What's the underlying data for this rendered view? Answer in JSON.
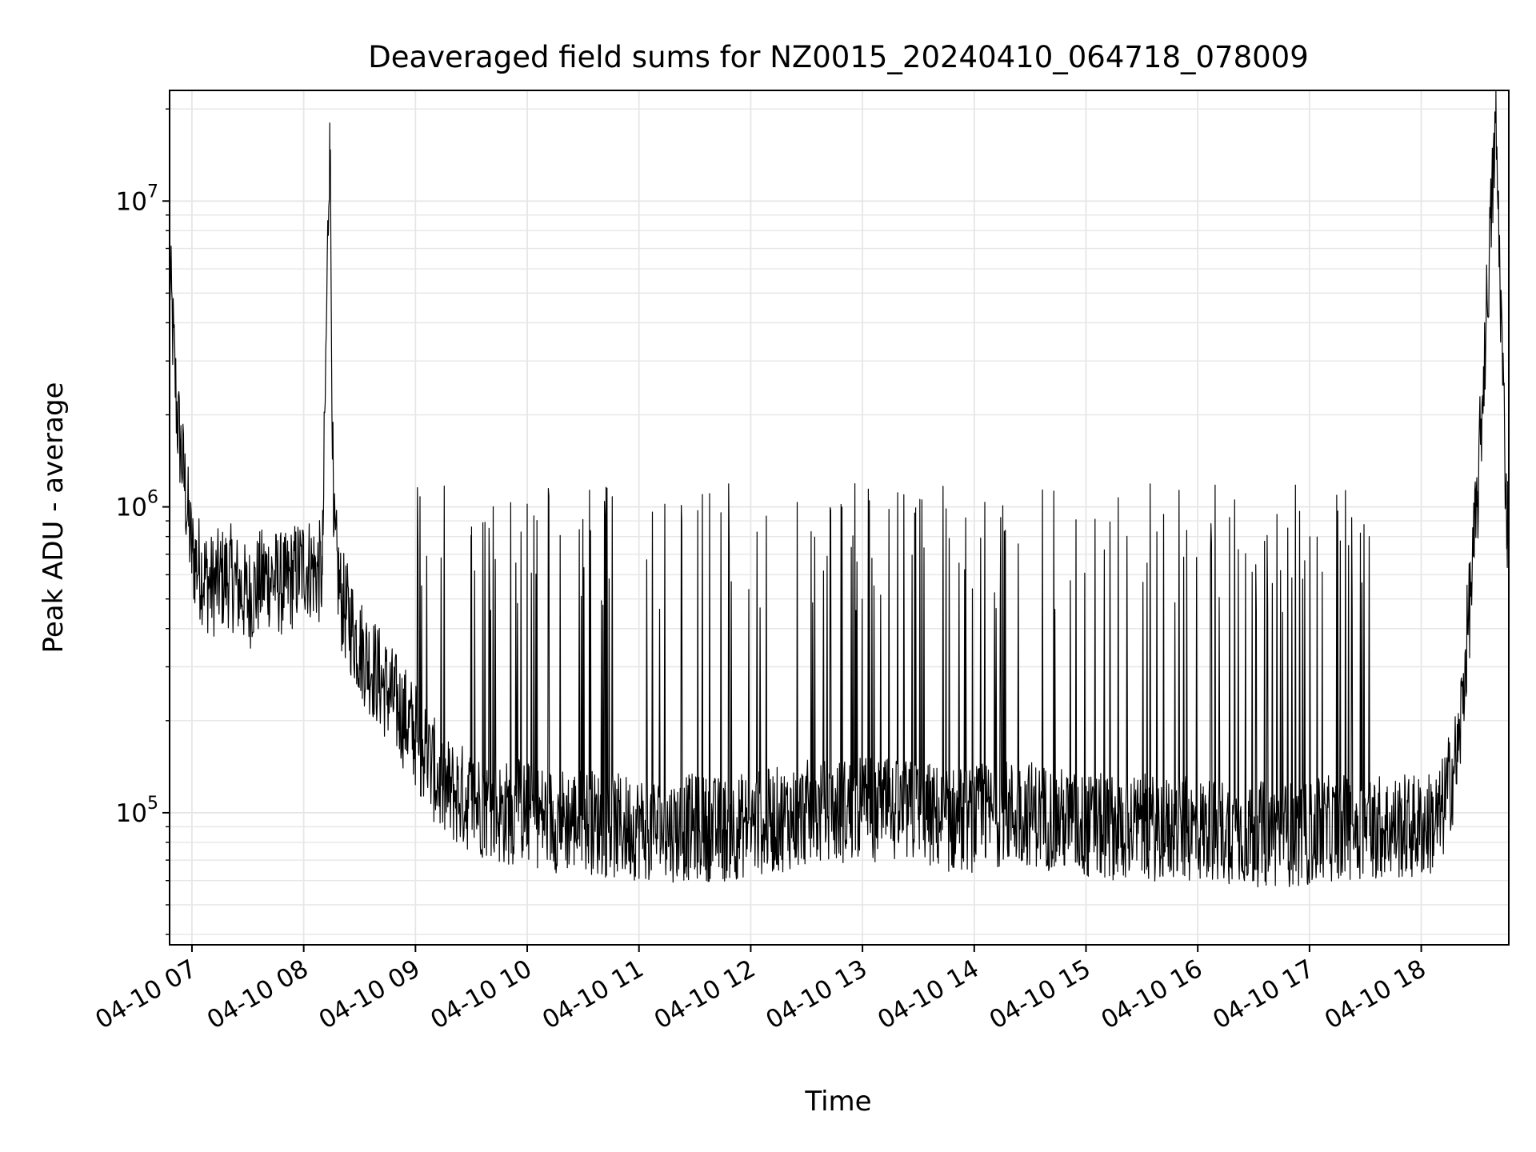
{
  "chart_data": {
    "type": "line",
    "title": "Deaveraged field sums for NZ0015_20240410_064718_078009",
    "xlabel": "Time",
    "ylabel": "Peak ADU - average",
    "y_scale": "log",
    "ylim": [
      37000,
      23000000
    ],
    "xlim": [
      "2024-04-10 06:48",
      "2024-04-10 18:47"
    ],
    "grid": "on (major and minor)",
    "line_color": "#000000",
    "x_ticks": [
      {
        "value": "2024-04-10 07:00",
        "label": "04-10 07"
      },
      {
        "value": "2024-04-10 08:00",
        "label": "04-10 08"
      },
      {
        "value": "2024-04-10 09:00",
        "label": "04-10 09"
      },
      {
        "value": "2024-04-10 10:00",
        "label": "04-10 10"
      },
      {
        "value": "2024-04-10 11:00",
        "label": "04-10 11"
      },
      {
        "value": "2024-04-10 12:00",
        "label": "04-10 12"
      },
      {
        "value": "2024-04-10 13:00",
        "label": "04-10 13"
      },
      {
        "value": "2024-04-10 14:00",
        "label": "04-10 14"
      },
      {
        "value": "2024-04-10 15:00",
        "label": "04-10 15"
      },
      {
        "value": "2024-04-10 16:00",
        "label": "04-10 16"
      },
      {
        "value": "2024-04-10 17:00",
        "label": "04-10 17"
      },
      {
        "value": "2024-04-10 18:00",
        "label": "04-10 18"
      }
    ],
    "y_ticks": [
      {
        "value": 100000,
        "base": "10",
        "exp": "5"
      },
      {
        "value": 1000000,
        "base": "10",
        "exp": "6"
      },
      {
        "value": 10000000,
        "base": "10",
        "exp": "7"
      }
    ],
    "series": [
      {
        "x": [
          "2024-04-10 06:48",
          "2024-04-10 06:52",
          "2024-04-10 06:56",
          "2024-04-10 07:00",
          "2024-04-10 07:10",
          "2024-04-10 07:20",
          "2024-04-10 07:30",
          "2024-04-10 07:40",
          "2024-04-10 07:50",
          "2024-04-10 08:00",
          "2024-04-10 08:10",
          "2024-04-10 08:14",
          "2024-04-10 08:16",
          "2024-04-10 08:20",
          "2024-04-10 08:30",
          "2024-04-10 08:45",
          "2024-04-10 09:00",
          "2024-04-10 09:15",
          "2024-04-10 09:30",
          "2024-04-10 09:45",
          "2024-04-10 10:00",
          "2024-04-10 10:15",
          "2024-04-10 10:30",
          "2024-04-10 10:45",
          "2024-04-10 11:00",
          "2024-04-10 11:15",
          "2024-04-10 11:30",
          "2024-04-10 11:45",
          "2024-04-10 12:00",
          "2024-04-10 12:15",
          "2024-04-10 12:30",
          "2024-04-10 12:45",
          "2024-04-10 13:00",
          "2024-04-10 13:15",
          "2024-04-10 13:30",
          "2024-04-10 13:45",
          "2024-04-10 14:00",
          "2024-04-10 14:15",
          "2024-04-10 14:30",
          "2024-04-10 14:45",
          "2024-04-10 15:00",
          "2024-04-10 15:15",
          "2024-04-10 15:30",
          "2024-04-10 15:45",
          "2024-04-10 16:00",
          "2024-04-10 16:15",
          "2024-04-10 16:30",
          "2024-04-10 16:45",
          "2024-04-10 17:00",
          "2024-04-10 17:15",
          "2024-04-10 17:30",
          "2024-04-10 17:45",
          "2024-04-10 18:00",
          "2024-04-10 18:10",
          "2024-04-10 18:20",
          "2024-04-10 18:30",
          "2024-04-10 18:40",
          "2024-04-10 18:46"
        ],
        "y": [
          6000000,
          2000000,
          1200000,
          700000,
          550000,
          600000,
          500000,
          600000,
          550000,
          650000,
          600000,
          18000000,
          800000,
          500000,
          350000,
          250000,
          180000,
          120000,
          110000,
          100000,
          100000,
          95000,
          95000,
          90000,
          90000,
          88000,
          90000,
          88000,
          92000,
          95000,
          100000,
          100000,
          105000,
          100000,
          100000,
          95000,
          95000,
          100000,
          100000,
          95000,
          90000,
          90000,
          90000,
          88000,
          88000,
          88000,
          85000,
          85000,
          85000,
          90000,
          90000,
          90000,
          90000,
          95000,
          160000,
          1000000,
          18000000,
          900000
        ]
      }
    ]
  }
}
